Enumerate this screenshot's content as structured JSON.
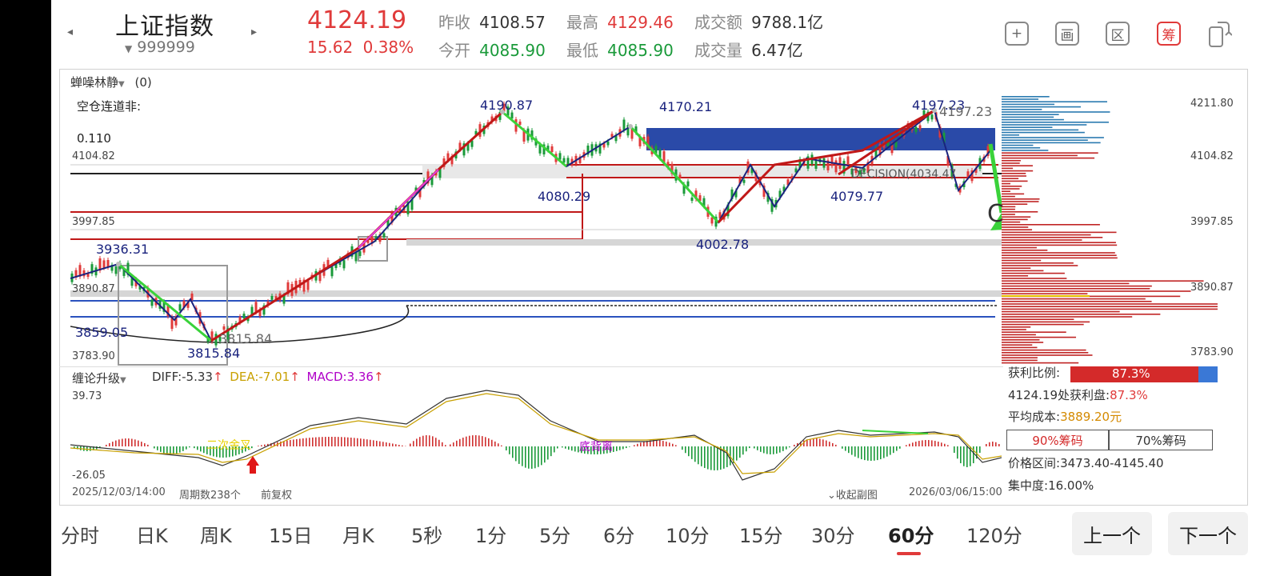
{
  "header": {
    "name": "上证指数",
    "code": "999999",
    "price": "4124.19",
    "change": "15.62",
    "change_pct": "0.38%",
    "stats": {
      "prev_close_label": "昨收",
      "prev_close": "4108.57",
      "high_label": "最高",
      "high": "4129.46",
      "amount_label": "成交额",
      "amount": "9788.1亿",
      "open_label": "今开",
      "open": "4085.90",
      "low_label": "最低",
      "low": "4085.90",
      "volume_label": "成交量",
      "volume": "6.47亿"
    },
    "tools": [
      {
        "icon": "plus-icon",
        "glyph": "+"
      },
      {
        "icon": "draw-icon",
        "glyph": "画"
      },
      {
        "icon": "interval-icon",
        "glyph": "区"
      },
      {
        "icon": "chips-icon",
        "glyph": "筹"
      },
      {
        "icon": "rotate-screen-icon",
        "glyph": "⧉"
      }
    ]
  },
  "main_chart": {
    "indicator": "蝉噪林静",
    "indicator_value": "(0)",
    "note_line1": "空仓连道非:",
    "note_line2": "0.110",
    "left_axis": [
      "4104.82",
      "3997.85",
      "3890.87",
      "3783.90"
    ],
    "right_axis": [
      "4211.80",
      "4104.82",
      "3997.85",
      "3890.87",
      "3783.90"
    ],
    "annotations": [
      "4190.87",
      "4170.21",
      "4197.23",
      "4197.23",
      "3936.31",
      "4080.29",
      "4079.77",
      "4002.78",
      "3859.05",
      "3815.84",
      "3815.84"
    ],
    "decision_text": "DECISION(4034.47",
    "c_mark": "C"
  },
  "macd": {
    "indicator": "缠论升级",
    "diff": "DIFF:-5.33",
    "dea": "DEA:-7.01",
    "macd": "MACD:3.36",
    "top": "39.73",
    "bottom": "-26.05",
    "label_bottom_div": "底背离",
    "label_second": "二次金叉",
    "colors": {
      "diff": "#333333",
      "dea": "#c8a000",
      "macd": "#b000c8"
    }
  },
  "footer": {
    "start_time": "2025/12/03/14:00",
    "period_count": "周期数238个",
    "adjust": "前复权",
    "collapse": "收起副图",
    "end_time": "2026/03/06/15:00"
  },
  "chips": {
    "profit_label": "获利比例:",
    "profit_value": "87.3%",
    "profit_line": "4124.19处获利盘:",
    "profit_line_value": "87.3%",
    "avg_cost_label": "平均成本:",
    "avg_cost_value": "3889.20元",
    "tab90": "90%筹码",
    "tab70": "70%筹码",
    "range_label": "价格区间:",
    "range_value": "3473.40-4145.40",
    "concentration_label": "集中度:",
    "concentration_value": "16.00%"
  },
  "periods": [
    "分时",
    "日K",
    "周K",
    "15日",
    "月K",
    "5秒",
    "1分",
    "5分",
    "6分",
    "10分",
    "15分",
    "30分",
    "60分",
    "120分"
  ],
  "active_period": "60分",
  "nav": {
    "prev": "上一个",
    "next": "下一个"
  },
  "colors": {
    "up": "#e03a3a",
    "down": "#1a9a3a",
    "accent": "#e03a3a"
  }
}
